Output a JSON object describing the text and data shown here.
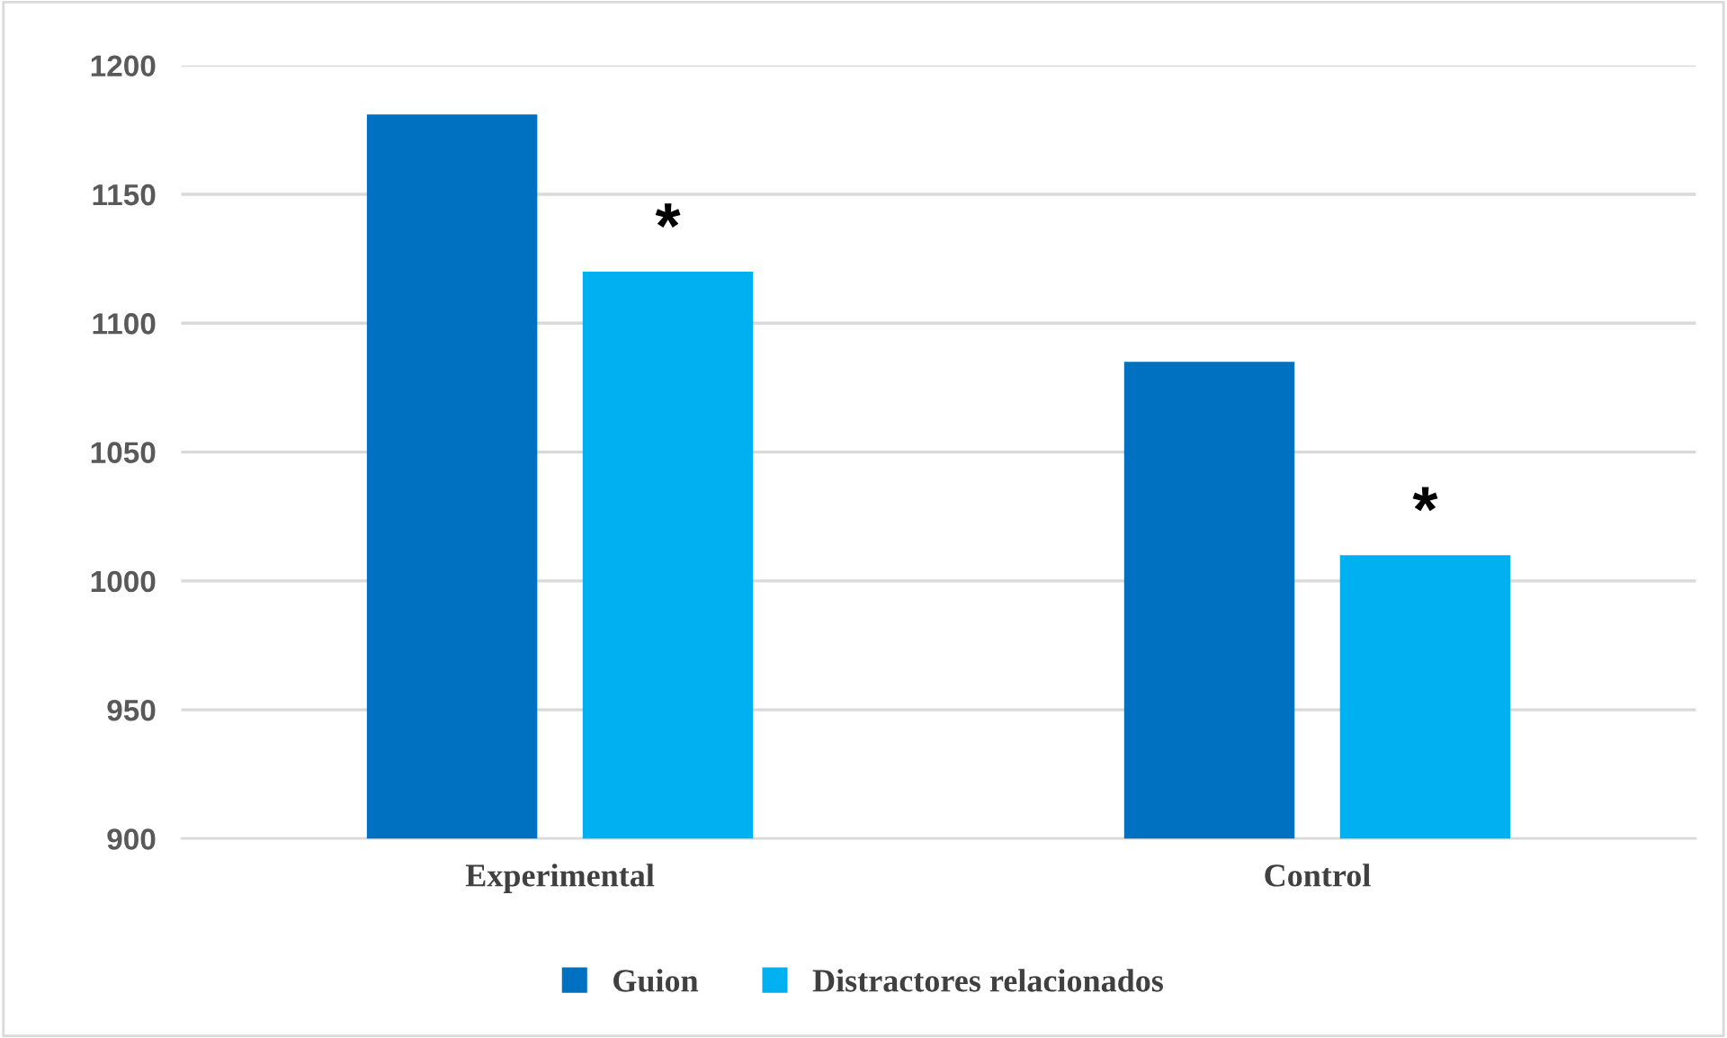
{
  "chart_data": {
    "type": "bar",
    "categories": [
      "Experimental",
      "Control"
    ],
    "series": [
      {
        "name": "Guion",
        "color": "#0070c0",
        "values": [
          1181,
          1085
        ]
      },
      {
        "name": "Distractores relacionados",
        "color": "#00b0f0",
        "values": [
          1120,
          1010
        ]
      }
    ],
    "ylim": [
      900,
      1200
    ],
    "yticks": [
      900,
      950,
      1000,
      1050,
      1100,
      1150,
      1200
    ],
    "grid": "y",
    "legend": "bottom",
    "annotations": [
      "*",
      "*"
    ]
  }
}
